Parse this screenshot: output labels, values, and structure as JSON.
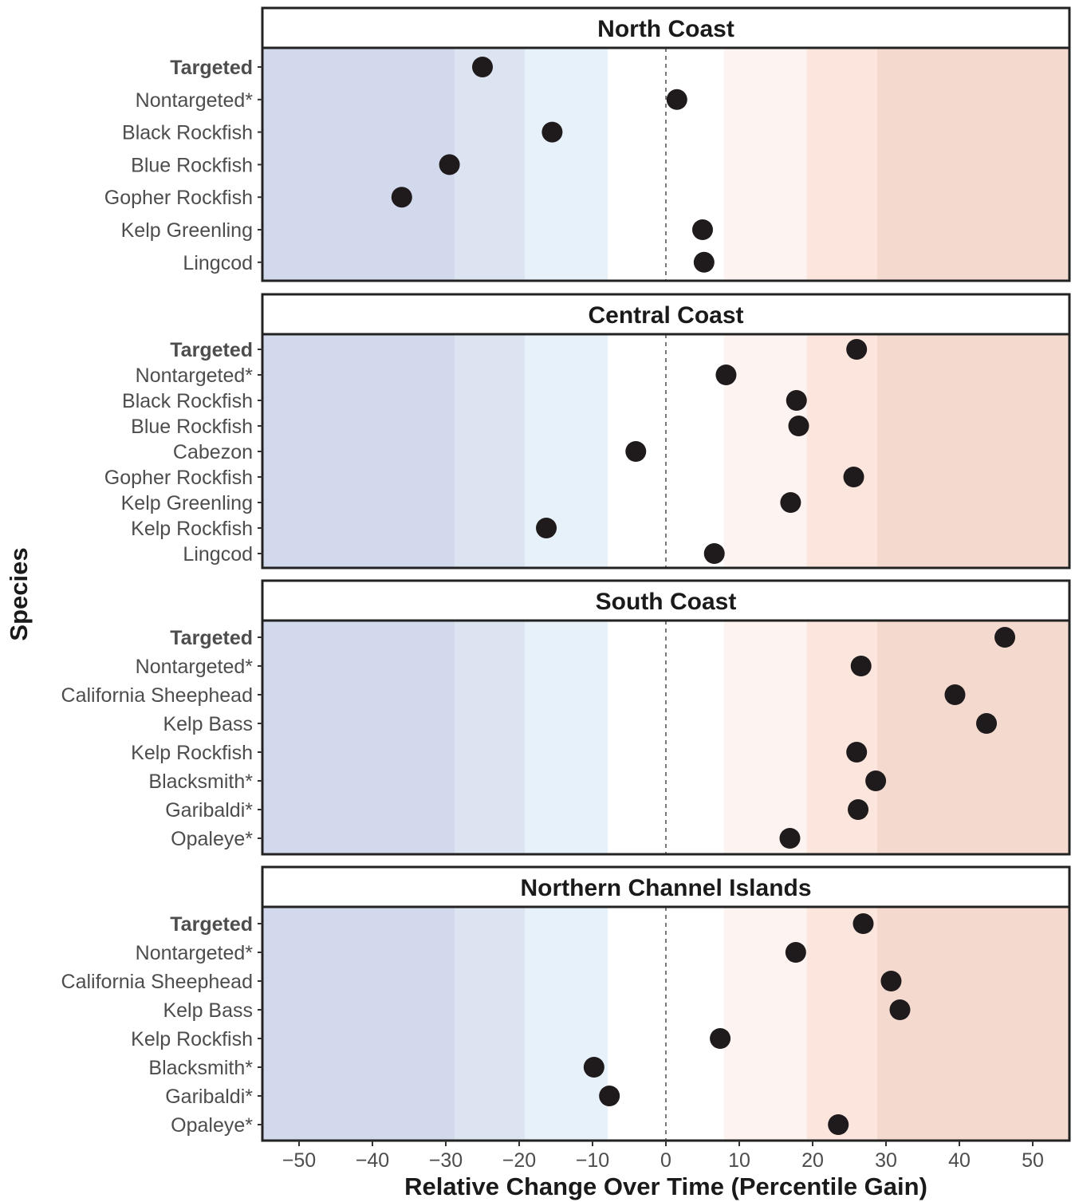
{
  "chart_data": {
    "type": "scatter",
    "xlabel": "Relative Change Over Time (Percentile Gain)",
    "ylabel": "Species",
    "xlim": [
      -55,
      55
    ],
    "x_ticks": [
      -50,
      -40,
      -30,
      -20,
      -10,
      0,
      10,
      20,
      30,
      40,
      50
    ],
    "x_tick_labels": [
      "−50",
      "−40",
      "−30",
      "−20",
      "−10",
      "0",
      "10",
      "20",
      "30",
      "40",
      "50"
    ],
    "reference_line": 0,
    "background_bands": [
      {
        "from": -55,
        "to": -28.8,
        "color": "#d2d9ec"
      },
      {
        "from": -28.8,
        "to": -19.2,
        "color": "#dce4f1"
      },
      {
        "from": -19.2,
        "to": -7.9,
        "color": "#e6f1fa"
      },
      {
        "from": -7.9,
        "to": 7.9,
        "color": "#ffffff"
      },
      {
        "from": 7.9,
        "to": 19.2,
        "color": "#fdf3f0"
      },
      {
        "from": 19.2,
        "to": 28.8,
        "color": "#fbe5dd"
      },
      {
        "from": 28.8,
        "to": 55,
        "color": "#f4d9cf"
      }
    ],
    "marker_color": "#1f1a1c",
    "panels": [
      {
        "title": "North Coast",
        "categories": [
          "Targeted",
          "Nontargeted*",
          "Black Rockfish",
          "Blue Rockfish",
          "Gopher Rockfish",
          "Kelp Greenling",
          "Lingcod"
        ],
        "bold_categories": [
          "Targeted"
        ],
        "values": [
          -25,
          1.5,
          -15.5,
          -29.5,
          -36,
          5,
          5.2
        ]
      },
      {
        "title": "Central Coast",
        "categories": [
          "Targeted",
          "Nontargeted*",
          "Black Rockfish",
          "Blue Rockfish",
          "Cabezon",
          "Gopher Rockfish",
          "Kelp Greenling",
          "Kelp Rockfish",
          "Lingcod"
        ],
        "bold_categories": [
          "Targeted"
        ],
        "values": [
          26,
          8.2,
          17.8,
          18.1,
          -4.1,
          25.6,
          17,
          -16.3,
          6.6
        ]
      },
      {
        "title": "South Coast",
        "categories": [
          "Targeted",
          "Nontargeted*",
          "California Sheephead",
          "Kelp Bass",
          "Kelp Rockfish",
          "Blacksmith*",
          "Garibaldi*",
          "Opaleye*"
        ],
        "bold_categories": [
          "Targeted"
        ],
        "values": [
          46.2,
          26.6,
          39.4,
          43.7,
          26,
          28.6,
          26.2,
          16.9
        ]
      },
      {
        "title": "Northern Channel Islands",
        "categories": [
          "Targeted",
          "Nontargeted*",
          "California Sheephead",
          "Kelp Bass",
          "Kelp Rockfish",
          "Blacksmith*",
          "Garibaldi*",
          "Opaleye*"
        ],
        "bold_categories": [
          "Targeted"
        ],
        "values": [
          26.9,
          17.7,
          30.7,
          31.9,
          7.4,
          -9.8,
          -7.7,
          23.5
        ]
      }
    ]
  }
}
